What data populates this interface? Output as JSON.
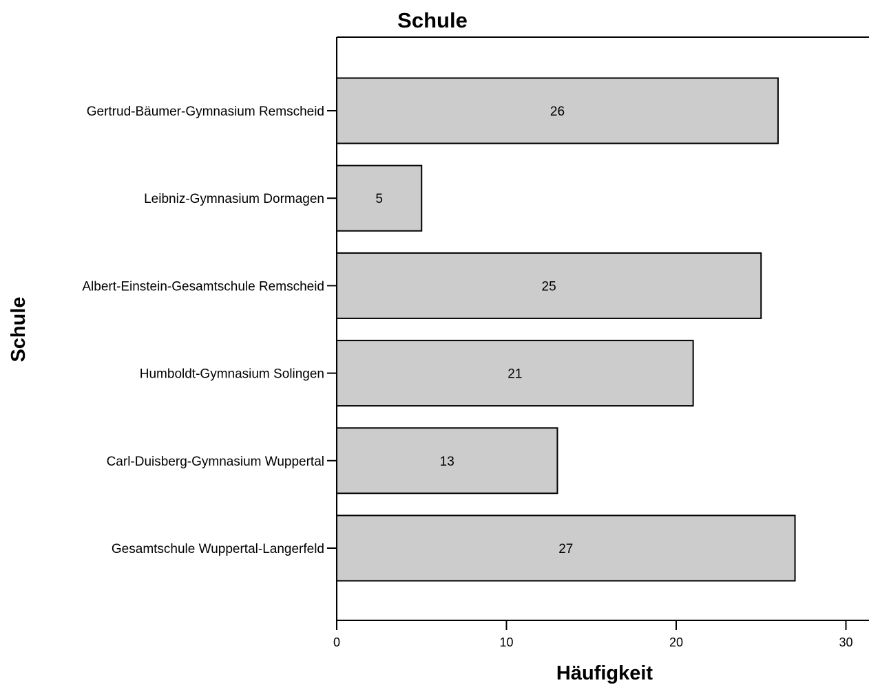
{
  "chart_data": {
    "type": "bar",
    "orientation": "horizontal",
    "title": "Schule",
    "xlabel": "Häufigkeit",
    "ylabel": "Schule",
    "categories": [
      "Gertrud-Bäumer-Gymnasium Remscheid",
      "Leibniz-Gymnasium Dormagen",
      "Albert-Einstein-Gesamtschule Remscheid",
      "Humboldt-Gymnasium Solingen",
      "Carl-Duisberg-Gymnasium Wuppertal",
      "Gesamtschule Wuppertal-Langerfeld"
    ],
    "values": [
      26,
      5,
      25,
      21,
      13,
      27
    ],
    "xlim": [
      0,
      31
    ],
    "xticks": [
      0,
      10,
      20,
      30
    ],
    "bar_color": "#cccccc",
    "grid": false,
    "legend": "none",
    "data_labels": true
  }
}
